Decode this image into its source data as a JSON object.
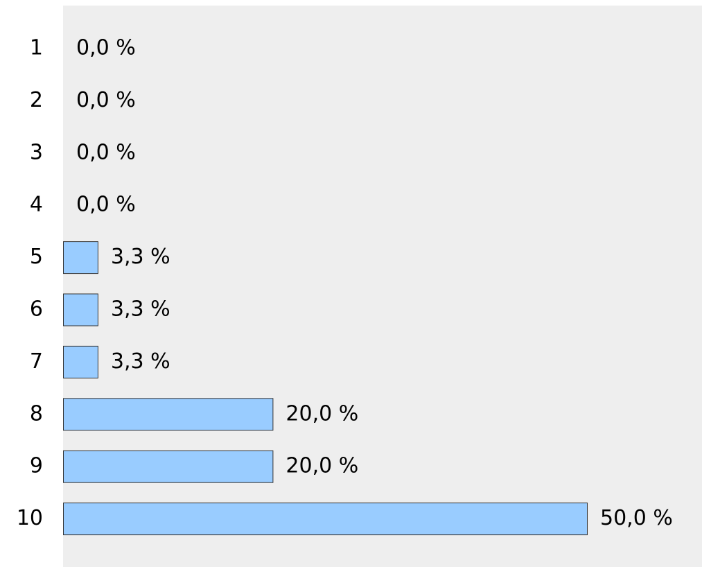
{
  "chart_data": {
    "type": "hbar",
    "categories": [
      "1",
      "2",
      "3",
      "4",
      "5",
      "6",
      "7",
      "8",
      "9",
      "10"
    ],
    "values": [
      0,
      0,
      0,
      0,
      3.3,
      3.3,
      3.3,
      20,
      20,
      50
    ],
    "value_labels": [
      "0,0 %",
      "0,0 %",
      "0,0 %",
      "0,0 %",
      "3,3 %",
      "3,3 %",
      "3,3 %",
      "20,0 %",
      "20,0 %",
      "50,0 %"
    ],
    "color": "#99ccff"
  }
}
